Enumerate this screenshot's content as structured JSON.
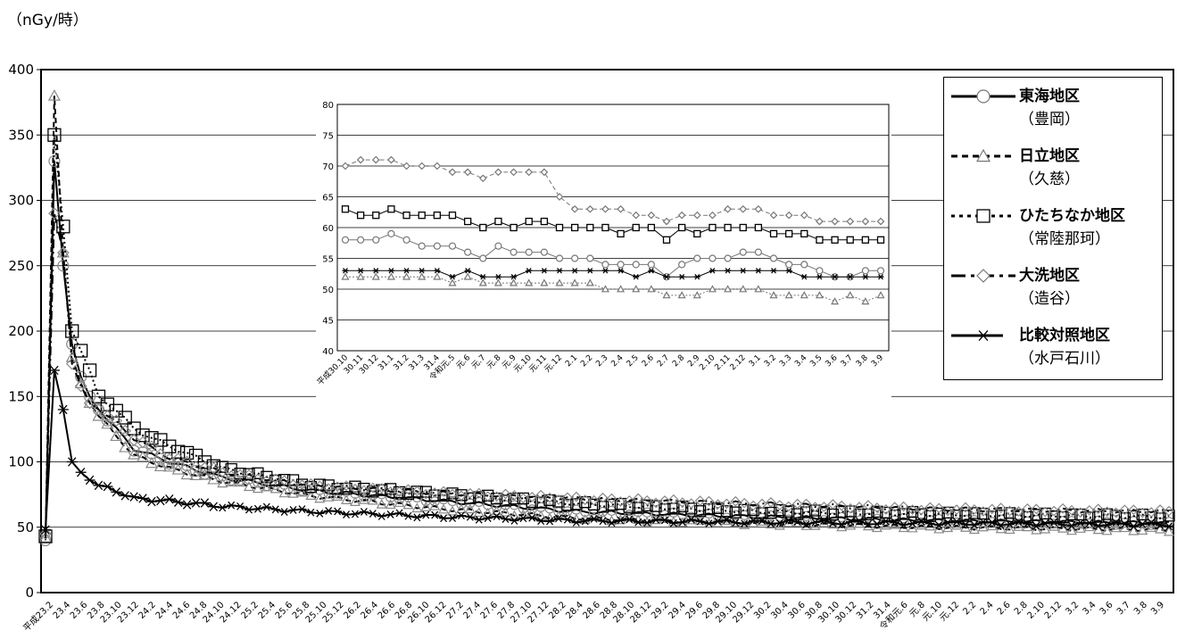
{
  "unit_label": "（nGy/時）",
  "legend": [
    {
      "name": "東海地区",
      "sub": "（豊岡）",
      "marker": "circle",
      "dash": "solid"
    },
    {
      "name": "日立地区",
      "sub": "（久慈）",
      "marker": "triangle",
      "dash": "dashed"
    },
    {
      "name": "ひたちなか地区",
      "sub": "（常陸那珂）",
      "marker": "square",
      "dash": "dotted"
    },
    {
      "name": "大洗地区",
      "sub": "（造谷）",
      "marker": "diamond",
      "dash": "dashdot"
    },
    {
      "name": "比較対照地区",
      "sub": "（水戸石川）",
      "marker": "asterisk",
      "dash": "solid"
    }
  ],
  "chart_data": [
    {
      "type": "line",
      "ylim": [
        0,
        400
      ],
      "yticks": [
        0,
        50,
        100,
        150,
        200,
        250,
        300,
        350,
        400
      ],
      "grid": true,
      "legend_position": "right",
      "x_labels": [
        "平成23.2",
        "23.4",
        "23.6",
        "23.8",
        "23.10",
        "23.12",
        "24.2",
        "24.4",
        "24.6",
        "24.8",
        "24.10",
        "24.12",
        "25.2",
        "25.4",
        "25.6",
        "25.8",
        "25.10",
        "25.12",
        "26.2",
        "26.4",
        "26.6",
        "26.8",
        "26.10",
        "26.12",
        "27.2",
        "27.4",
        "27.6",
        "27.8",
        "27.10",
        "27.12",
        "28.2",
        "28.4",
        "28.6",
        "28.8",
        "28.10",
        "28.12",
        "29.2",
        "29.4",
        "29.6",
        "29.8",
        "29.10",
        "29.12",
        "30.2",
        "30.4",
        "30.6",
        "30.8",
        "30.10",
        "30.12",
        "31.2",
        "31.4",
        "令和元.6",
        "元.8",
        "元.10",
        "元.12",
        "2.2",
        "2.4",
        "2.6",
        "2.8",
        "2.10",
        "2.12",
        "3.2",
        "3.4",
        "3.6",
        "3.7",
        "3.8",
        "3.9"
      ],
      "anchors": [
        0,
        1,
        2,
        3,
        4,
        5,
        6,
        8,
        10,
        14,
        20,
        30,
        45,
        60,
        80,
        100,
        127
      ],
      "series": [
        {
          "name": "東海地区",
          "values": [
            40,
            330,
            250,
            190,
            165,
            150,
            140,
            125,
            110,
            100,
            88,
            78,
            70,
            62,
            58,
            55,
            53
          ]
        },
        {
          "name": "日立地区",
          "values": [
            42,
            380,
            260,
            180,
            160,
            145,
            135,
            120,
            105,
            95,
            85,
            74,
            64,
            57,
            53,
            50,
            48
          ]
        },
        {
          "name": "ひたちなか地区",
          "values": [
            43,
            350,
            280,
            200,
            185,
            170,
            150,
            140,
            125,
            112,
            95,
            82,
            75,
            68,
            62,
            60,
            58
          ]
        },
        {
          "name": "大洗地区",
          "values": [
            45,
            290,
            260,
            175,
            158,
            145,
            140,
            130,
            118,
            103,
            92,
            82,
            76,
            72,
            68,
            64,
            62
          ]
        },
        {
          "name": "比較対照地区",
          "values": [
            48,
            170,
            140,
            100,
            92,
            86,
            82,
            78,
            72,
            70,
            66,
            62,
            58,
            55,
            54,
            53,
            52
          ]
        }
      ]
    },
    {
      "type": "line",
      "ylim": [
        40,
        80
      ],
      "yticks": [
        40,
        45,
        50,
        55,
        60,
        65,
        70,
        75,
        80
      ],
      "grid": true,
      "x_labels": [
        "平成30.10",
        "30.11",
        "30.12",
        "31.1",
        "31.2",
        "31.3",
        "31.4",
        "令和元.5",
        "元.6",
        "元.7",
        "元.8",
        "元.9",
        "元.10",
        "元.11",
        "元.12",
        "2.1",
        "2.2",
        "2.3",
        "2.4",
        "2.5",
        "2.6",
        "2.7",
        "2.8",
        "2.9",
        "2.10",
        "2.11",
        "2.12",
        "3.1",
        "3.2",
        "3.3",
        "3.4",
        "3.5",
        "3.6",
        "3.7",
        "3.8",
        "3.9"
      ],
      "series": [
        {
          "name": "東海地区",
          "values": [
            58,
            58,
            58,
            59,
            58,
            57,
            57,
            57,
            56,
            55,
            57,
            56,
            56,
            56,
            55,
            55,
            55,
            54,
            54,
            54,
            54,
            52,
            54,
            55,
            55,
            55,
            56,
            56,
            55,
            54,
            54,
            53,
            52,
            52,
            53,
            53
          ]
        },
        {
          "name": "日立地区",
          "values": [
            52,
            52,
            52,
            52,
            52,
            52,
            52,
            51,
            52,
            51,
            51,
            51,
            51,
            51,
            51,
            51,
            51,
            50,
            50,
            50,
            50,
            49,
            49,
            49,
            50,
            50,
            50,
            50,
            49,
            49,
            49,
            49,
            48,
            49,
            48,
            49
          ]
        },
        {
          "name": "ひたちなか地区",
          "values": [
            63,
            62,
            62,
            63,
            62,
            62,
            62,
            62,
            61,
            60,
            61,
            60,
            61,
            61,
            60,
            60,
            60,
            60,
            59,
            60,
            60,
            58,
            60,
            59,
            60,
            60,
            60,
            60,
            59,
            59,
            59,
            58,
            58,
            58,
            58,
            58
          ]
        },
        {
          "name": "大洗地区",
          "values": [
            70,
            71,
            71,
            71,
            70,
            70,
            70,
            69,
            69,
            68,
            69,
            69,
            69,
            69,
            65,
            63,
            63,
            63,
            63,
            62,
            62,
            61,
            62,
            62,
            62,
            63,
            63,
            63,
            62,
            62,
            62,
            61,
            61,
            61,
            61,
            61
          ]
        },
        {
          "name": "比較対照地区",
          "values": [
            53,
            53,
            53,
            53,
            53,
            53,
            53,
            52,
            53,
            52,
            52,
            52,
            53,
            53,
            53,
            53,
            53,
            53,
            53,
            52,
            53,
            52,
            52,
            52,
            53,
            53,
            53,
            53,
            53,
            53,
            52,
            52,
            52,
            52,
            52,
            52
          ]
        }
      ]
    }
  ]
}
